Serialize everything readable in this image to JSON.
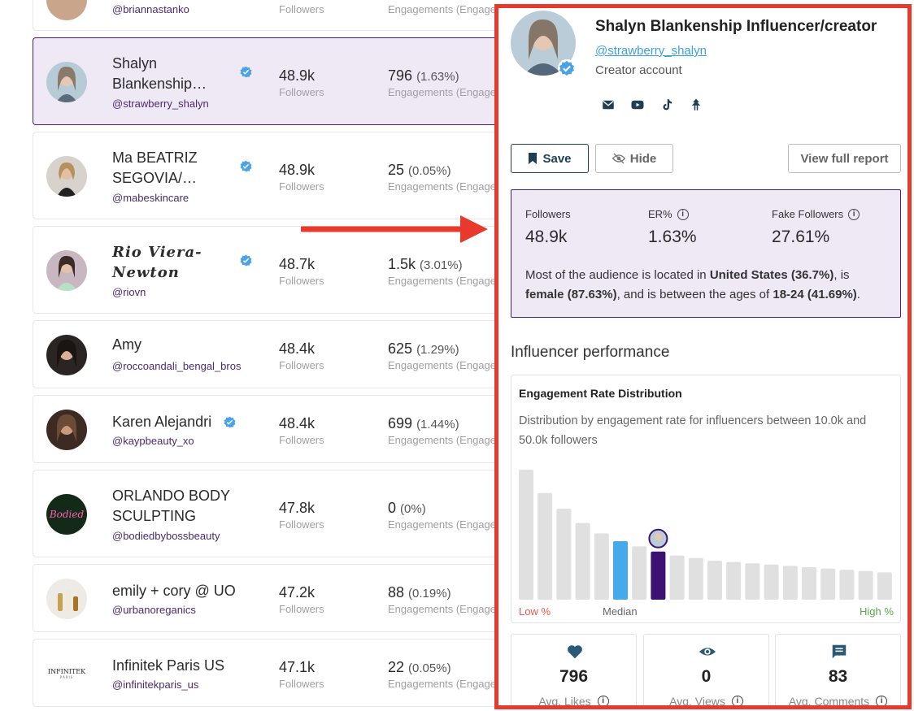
{
  "list": {
    "rows": [
      {
        "name": "",
        "handle": "@briannastanko",
        "followers": "",
        "followers_label": "Followers",
        "engagements": "",
        "engagements_pct": "",
        "engagements_label": "Engagements (Engagem"
      },
      {
        "name": "Shalyn Blankenship…",
        "handle": "@strawberry_shalyn",
        "followers": "48.9k",
        "followers_label": "Followers",
        "engagements": "796",
        "engagements_pct": "(1.63%)",
        "engagements_label": "Engagements (Engagem"
      },
      {
        "name": "Ma BEATRIZ SEGOVIA/…",
        "handle": "@mabeskincare",
        "followers": "48.9k",
        "followers_label": "Followers",
        "engagements": "25",
        "engagements_pct": "(0.05%)",
        "engagements_label": "Engagements (Engagem"
      },
      {
        "name": "Rio Viera-Newton",
        "handle": "@riovn",
        "followers": "48.7k",
        "followers_label": "Followers",
        "engagements": "1.5k",
        "engagements_pct": "(3.01%)",
        "engagements_label": "Engagements (Engagem"
      },
      {
        "name": "Amy",
        "handle": "@roccoandali_bengal_bros",
        "followers": "48.4k",
        "followers_label": "Followers",
        "engagements": "625",
        "engagements_pct": "(1.29%)",
        "engagements_label": "Engagements (Engagem"
      },
      {
        "name": "Karen Alejandri",
        "handle": "@kaypbeauty_xo",
        "followers": "48.4k",
        "followers_label": "Followers",
        "engagements": "699",
        "engagements_pct": "(1.44%)",
        "engagements_label": "Engagements (Engagem"
      },
      {
        "name": "ORLANDO BODY SCULPTING",
        "handle": "@bodiedbybossbeauty",
        "followers": "47.8k",
        "followers_label": "Followers",
        "engagements": "0",
        "engagements_pct": "(0%)",
        "engagements_label": "Engagements (Engagem"
      },
      {
        "name": "emily + cory @ UO",
        "handle": "@urbanoreganics",
        "followers": "47.2k",
        "followers_label": "Followers",
        "engagements": "88",
        "engagements_pct": "(0.19%)",
        "engagements_label": "Engagements (Engagem"
      },
      {
        "name": "Infinitek Paris US",
        "handle": "@infinitekparis_us",
        "followers": "47.1k",
        "followers_label": "Followers",
        "engagements": "22",
        "engagements_pct": "(0.05%)",
        "engagements_label": "Engagements (Engagem"
      }
    ],
    "infinitek_logo_text": "INFINITEK",
    "infinitek_logo_sub": "PARIS",
    "bodied_logo_text": "Bodied"
  },
  "profile": {
    "name": "Shalyn Blankenship Influencer/creator",
    "handle": "@strawberry_shalyn",
    "account_type": "Creator account",
    "social_icons": [
      "mail-icon",
      "youtube-icon",
      "tiktok-icon",
      "linktree-icon"
    ],
    "buttons": {
      "save": "Save",
      "hide": "Hide",
      "report": "View full report"
    }
  },
  "summary": {
    "followers_label": "Followers",
    "followers_value": "48.9k",
    "er_label": "ER%",
    "er_value": "1.63%",
    "fake_label": "Fake Followers",
    "fake_value": "27.61%",
    "t1": "Most of the audience is located in ",
    "b1": "United States (36.7%)",
    "t2": ", is ",
    "b2": "female (87.63%)",
    "t3": ", and is between the ages of ",
    "b3": "18-24 (41.69%)",
    "t4": "."
  },
  "performance": {
    "title": "Influencer performance",
    "chart_title": "Engagement Rate Distribution",
    "chart_desc": "Distribution by engagement rate for influencers between 10.0k and 50.0k followers",
    "low_label": "Low %",
    "median_label": "Median",
    "high_label": "High %"
  },
  "kpis": [
    {
      "value": "796",
      "label": "Avg. Likes",
      "icon": "heart-icon"
    },
    {
      "value": "0",
      "label": "Avg. Views",
      "icon": "eye-icon"
    },
    {
      "value": "83",
      "label": "Avg. Comments",
      "icon": "comment-icon"
    }
  ],
  "chart_data": {
    "type": "bar",
    "title": "Engagement Rate Distribution",
    "xlabel": "",
    "ylabel": "",
    "values": [
      100,
      82,
      70,
      59,
      51,
      45,
      41,
      37,
      34,
      32,
      30,
      29,
      28,
      27,
      26,
      25,
      24,
      23,
      22,
      21
    ],
    "median_index": 5,
    "highlight_index": 7,
    "colors": {
      "default": "#e0e0e0",
      "median": "#45a9ea",
      "highlight": "#3d1173"
    }
  }
}
